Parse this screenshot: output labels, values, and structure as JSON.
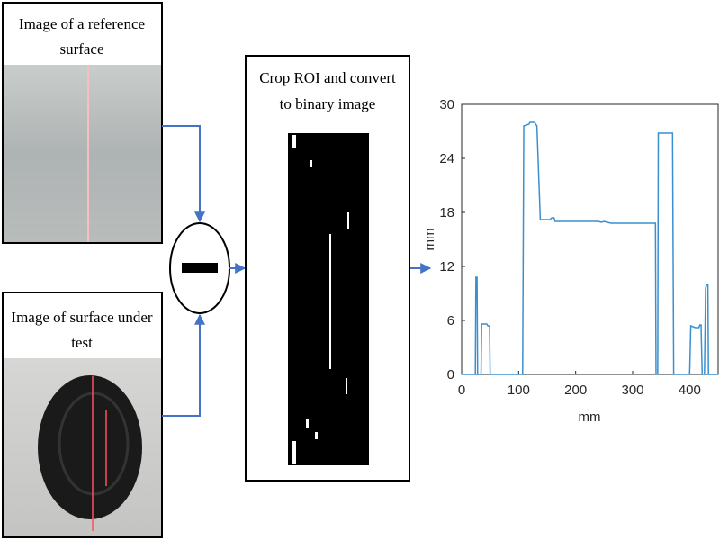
{
  "reference_box": {
    "title_lines": [
      "Image of a reference",
      "surface"
    ]
  },
  "test_box": {
    "title_lines": [
      "Image of surface under",
      "test"
    ]
  },
  "binary_box": {
    "title_lines": [
      "Crop ROI and convert",
      "to binary image"
    ]
  },
  "chart_data": {
    "type": "line",
    "x_label": "mm",
    "y_label": "mm",
    "xlim": [
      0,
      450
    ],
    "ylim": [
      0,
      30
    ],
    "xticks": [
      0,
      100,
      200,
      300,
      400
    ],
    "yticks": [
      0,
      6,
      12,
      18,
      24,
      30
    ],
    "color": "#3a8fcf",
    "x": [
      0,
      24,
      25,
      27,
      28,
      34,
      35,
      44,
      46,
      49,
      50,
      107,
      109,
      118,
      120,
      128,
      132,
      138,
      155,
      158,
      162,
      164,
      240,
      245,
      250,
      255,
      262,
      340,
      341,
      344,
      345,
      370,
      372,
      400,
      402,
      410,
      416,
      418,
      420,
      422,
      426,
      428,
      430,
      432,
      433,
      450
    ],
    "values": [
      0,
      0,
      10.8,
      10.8,
      0,
      0,
      5.6,
      5.6,
      5.4,
      5.4,
      0,
      0,
      27.6,
      27.8,
      28,
      28,
      27.6,
      17.2,
      17.2,
      17.4,
      17.4,
      17,
      17,
      16.9,
      17,
      16.9,
      16.8,
      16.8,
      0,
      0,
      26.8,
      26.8,
      0,
      0,
      5.4,
      5.2,
      5.2,
      5.5,
      5.5,
      0,
      0,
      9.6,
      10,
      10,
      0,
      0
    ]
  }
}
